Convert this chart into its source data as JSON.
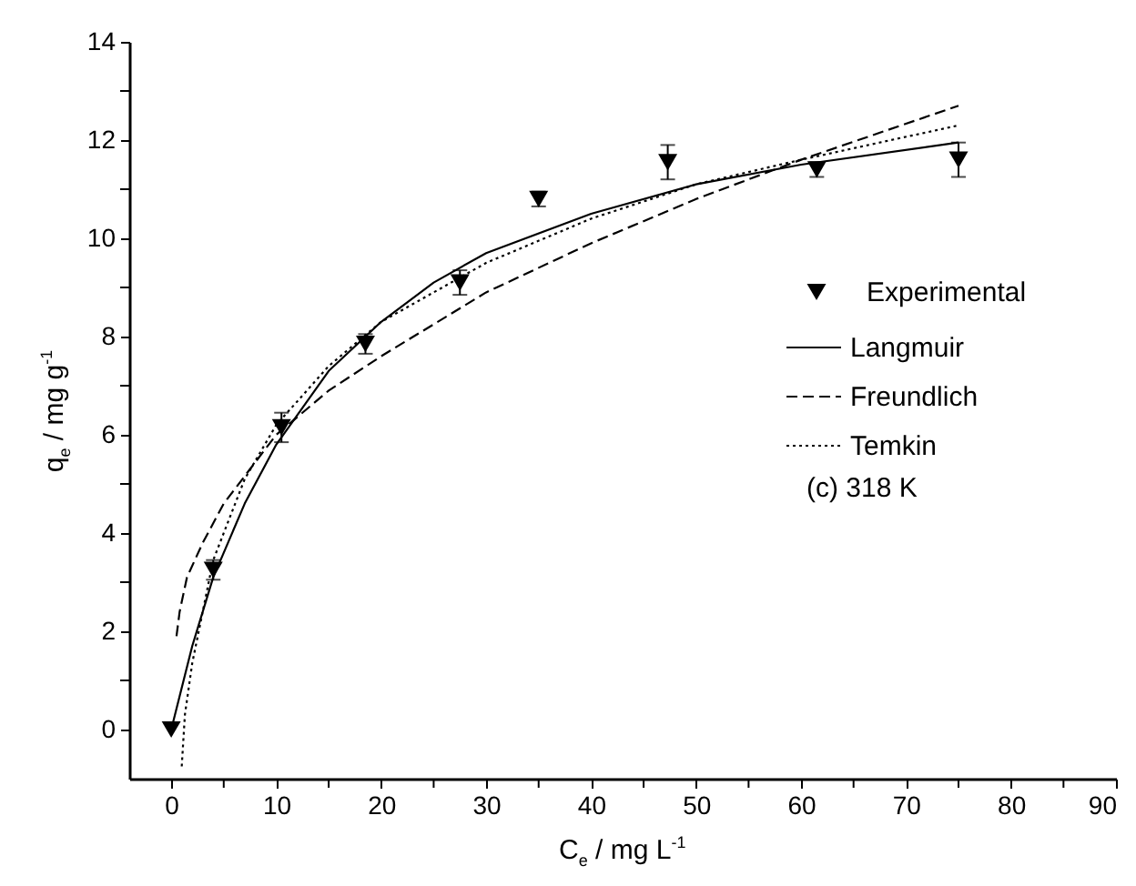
{
  "chart_data": {
    "type": "scatter",
    "xlabel": "C$_{e}$ / mg L$^{-1}$",
    "ylabel": "q$_{e}$ / mg g$^{-1}$",
    "annotations": [
      "(c) 318 K"
    ],
    "xlim": [
      -4,
      90
    ],
    "xticks": [
      0,
      {
        "value": 5,
        "label": null
      },
      10,
      {
        "value": 15,
        "label": null
      },
      20,
      {
        "value": 25,
        "label": null
      },
      30,
      {
        "value": 35,
        "label": null
      },
      40,
      {
        "value": 45,
        "label": null
      },
      50,
      {
        "value": 55,
        "label": null
      },
      60,
      {
        "value": 65,
        "label": null
      },
      70,
      {
        "value": 75,
        "label": null
      },
      80,
      {
        "value": 85,
        "label": null
      },
      90
    ],
    "ylim": [
      -1,
      14
    ],
    "yticks": [
      0,
      {
        "value": 1,
        "label": null
      },
      2,
      {
        "value": 3,
        "label": null
      },
      4,
      {
        "value": 5,
        "label": null
      },
      6,
      {
        "value": 7,
        "label": null
      },
      8,
      {
        "value": 9,
        "label": null
      },
      10,
      {
        "value": 11,
        "label": null
      },
      12,
      {
        "value": 13,
        "label": null
      },
      14
    ],
    "legend": "right",
    "series": [
      {
        "name": "Experimental",
        "marker": "triangle",
        "color": "#000000",
        "x": [
          0,
          4,
          10.5,
          18.5,
          27.5,
          35,
          47.3,
          61.5,
          75
        ],
        "values": [
          0,
          3.25,
          6.15,
          7.85,
          9.1,
          10.8,
          11.55,
          11.4,
          11.6
        ],
        "errors": [
          null,
          0.2,
          0.3,
          0.2,
          0.25,
          0.15,
          0.35,
          0.15,
          0.35
        ]
      },
      {
        "name": "Langmuir",
        "type": "line",
        "line_style": "solid",
        "marker": "none",
        "color": "#000000",
        "x": [
          0,
          2,
          4,
          7,
          10,
          15,
          20,
          25,
          30,
          40,
          50,
          60,
          75
        ],
        "values": [
          0,
          1.7,
          3.1,
          4.6,
          5.8,
          7.3,
          8.3,
          9.1,
          9.7,
          10.5,
          11.1,
          11.5,
          11.95
        ]
      },
      {
        "name": "Freundlich",
        "type": "line",
        "line_style": "dashed",
        "marker": "none",
        "color": "#000000",
        "x": [
          0.5,
          0.8,
          1.5,
          3,
          5,
          10,
          15,
          20,
          30,
          40,
          50,
          60,
          75
        ],
        "values": [
          1.9,
          2.4,
          3.1,
          3.8,
          4.6,
          6.0,
          6.9,
          7.6,
          8.9,
          9.9,
          10.8,
          11.6,
          12.7
        ]
      },
      {
        "name": "Temkin",
        "type": "line",
        "line_style": "dotted",
        "marker": "none",
        "color": "#000000",
        "x": [
          1,
          1.3,
          2,
          4,
          7,
          10,
          15,
          20,
          30,
          40,
          50,
          60,
          75
        ],
        "values": [
          -0.75,
          0.3,
          1.35,
          3.45,
          5.1,
          6.2,
          7.4,
          8.3,
          9.5,
          10.4,
          11.1,
          11.6,
          12.3
        ]
      }
    ]
  }
}
